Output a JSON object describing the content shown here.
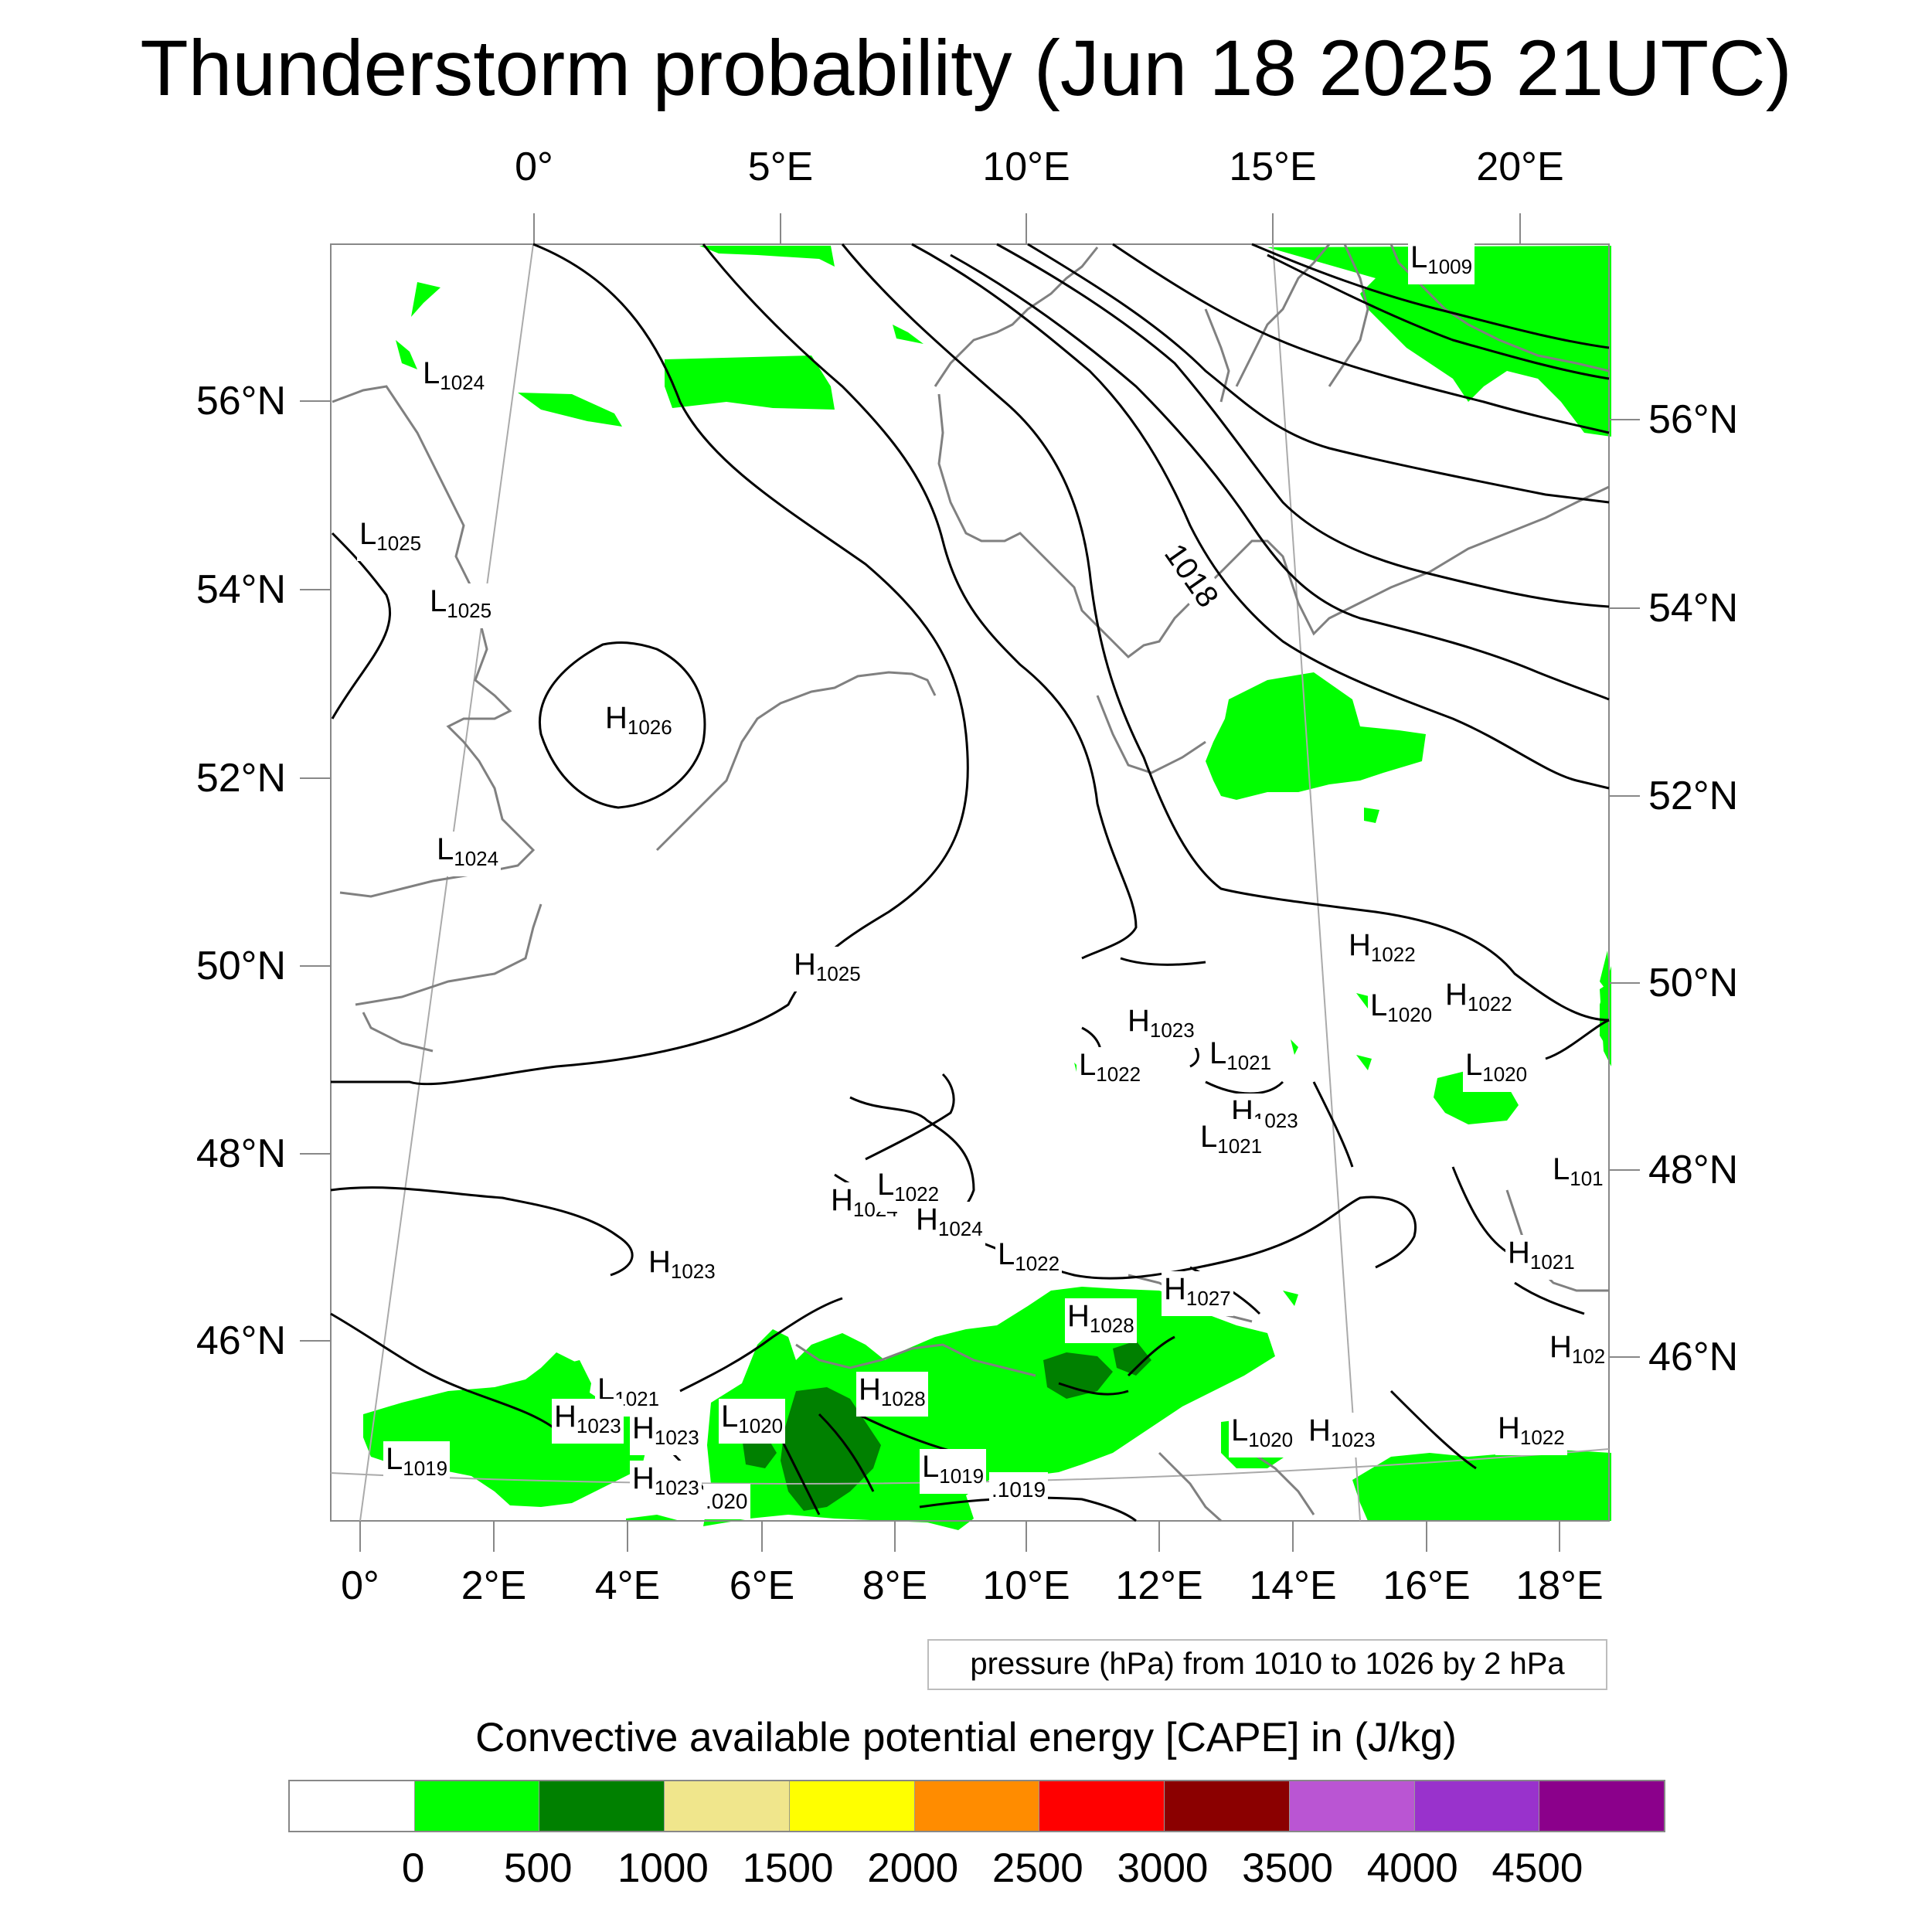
{
  "title": "Thunderstorm probability (Jun 18 2025 21UTC)",
  "top_lon_labels": [
    "0°",
    "5°E",
    "10°E",
    "15°E",
    "20°E"
  ],
  "bottom_lon_labels": [
    "0°",
    "2°E",
    "4°E",
    "6°E",
    "8°E",
    "10°E",
    "12°E",
    "14°E",
    "16°E",
    "18°E"
  ],
  "left_lat_labels": [
    "56°N",
    "54°N",
    "52°N",
    "50°N",
    "48°N",
    "46°N"
  ],
  "right_lat_labels": [
    "56°N",
    "54°N",
    "52°N",
    "50°N",
    "48°N",
    "46°N"
  ],
  "isobar_label": "1018",
  "pressure_centers": [
    {
      "type": "L",
      "value": "1009"
    },
    {
      "type": "L",
      "value": "1024"
    },
    {
      "type": "L",
      "value": "1025"
    },
    {
      "type": "L",
      "value": "1025"
    },
    {
      "type": "H",
      "value": "1026"
    },
    {
      "type": "L",
      "value": "1024"
    },
    {
      "type": "H",
      "value": "1025"
    },
    {
      "type": "H",
      "value": "1022"
    },
    {
      "type": "L",
      "value": "1020"
    },
    {
      "type": "H",
      "value": "1022"
    },
    {
      "type": "H",
      "value": "1023"
    },
    {
      "type": "L",
      "value": "1021"
    },
    {
      "type": "L",
      "value": "1022"
    },
    {
      "type": "L",
      "value": "1020"
    },
    {
      "type": "H",
      "value": "1023"
    },
    {
      "type": "L",
      "value": "1021"
    },
    {
      "type": "L",
      "value": "101"
    },
    {
      "type": "H",
      "value": "1024"
    },
    {
      "type": "L",
      "value": "1022"
    },
    {
      "type": "H",
      "value": "1024"
    },
    {
      "type": "H",
      "value": "1023"
    },
    {
      "type": "L",
      "value": "1022"
    },
    {
      "type": "H",
      "value": "1021"
    },
    {
      "type": "H",
      "value": "1027"
    },
    {
      "type": "H",
      "value": "1028"
    },
    {
      "type": "H",
      "value": "102"
    },
    {
      "type": "L",
      "value": "1021"
    },
    {
      "type": "H",
      "value": "1023"
    },
    {
      "type": "H",
      "value": "1023"
    },
    {
      "type": "L",
      "value": "1020"
    },
    {
      "type": "H",
      "value": "1028"
    },
    {
      "type": "L",
      "value": "1020"
    },
    {
      "type": "H",
      "value": "1023"
    },
    {
      "type": "H",
      "value": "1022"
    },
    {
      "type": "L",
      "value": "1019"
    },
    {
      "type": "H",
      "value": "1023"
    },
    {
      "type": "L",
      "value": "1019"
    },
    {
      "type": "",
      "value": ".020"
    },
    {
      "type": "",
      "value": ".1019"
    }
  ],
  "legend_note": "pressure (hPa) from 1010 to 1026 by 2 hPa",
  "colorbar": {
    "title": "Convective available potential energy [CAPE] in (J/kg)",
    "colors": [
      "#ffffff",
      "#00ff00",
      "#008000",
      "#f0e68c",
      "#ffff00",
      "#ff8c00",
      "#ff0000",
      "#8b0000",
      "#ba55d3",
      "#9932cc",
      "#8b008b"
    ],
    "ticks": [
      "0",
      "500",
      "1000",
      "1500",
      "2000",
      "2500",
      "3000",
      "3500",
      "4000",
      "4500"
    ]
  }
}
